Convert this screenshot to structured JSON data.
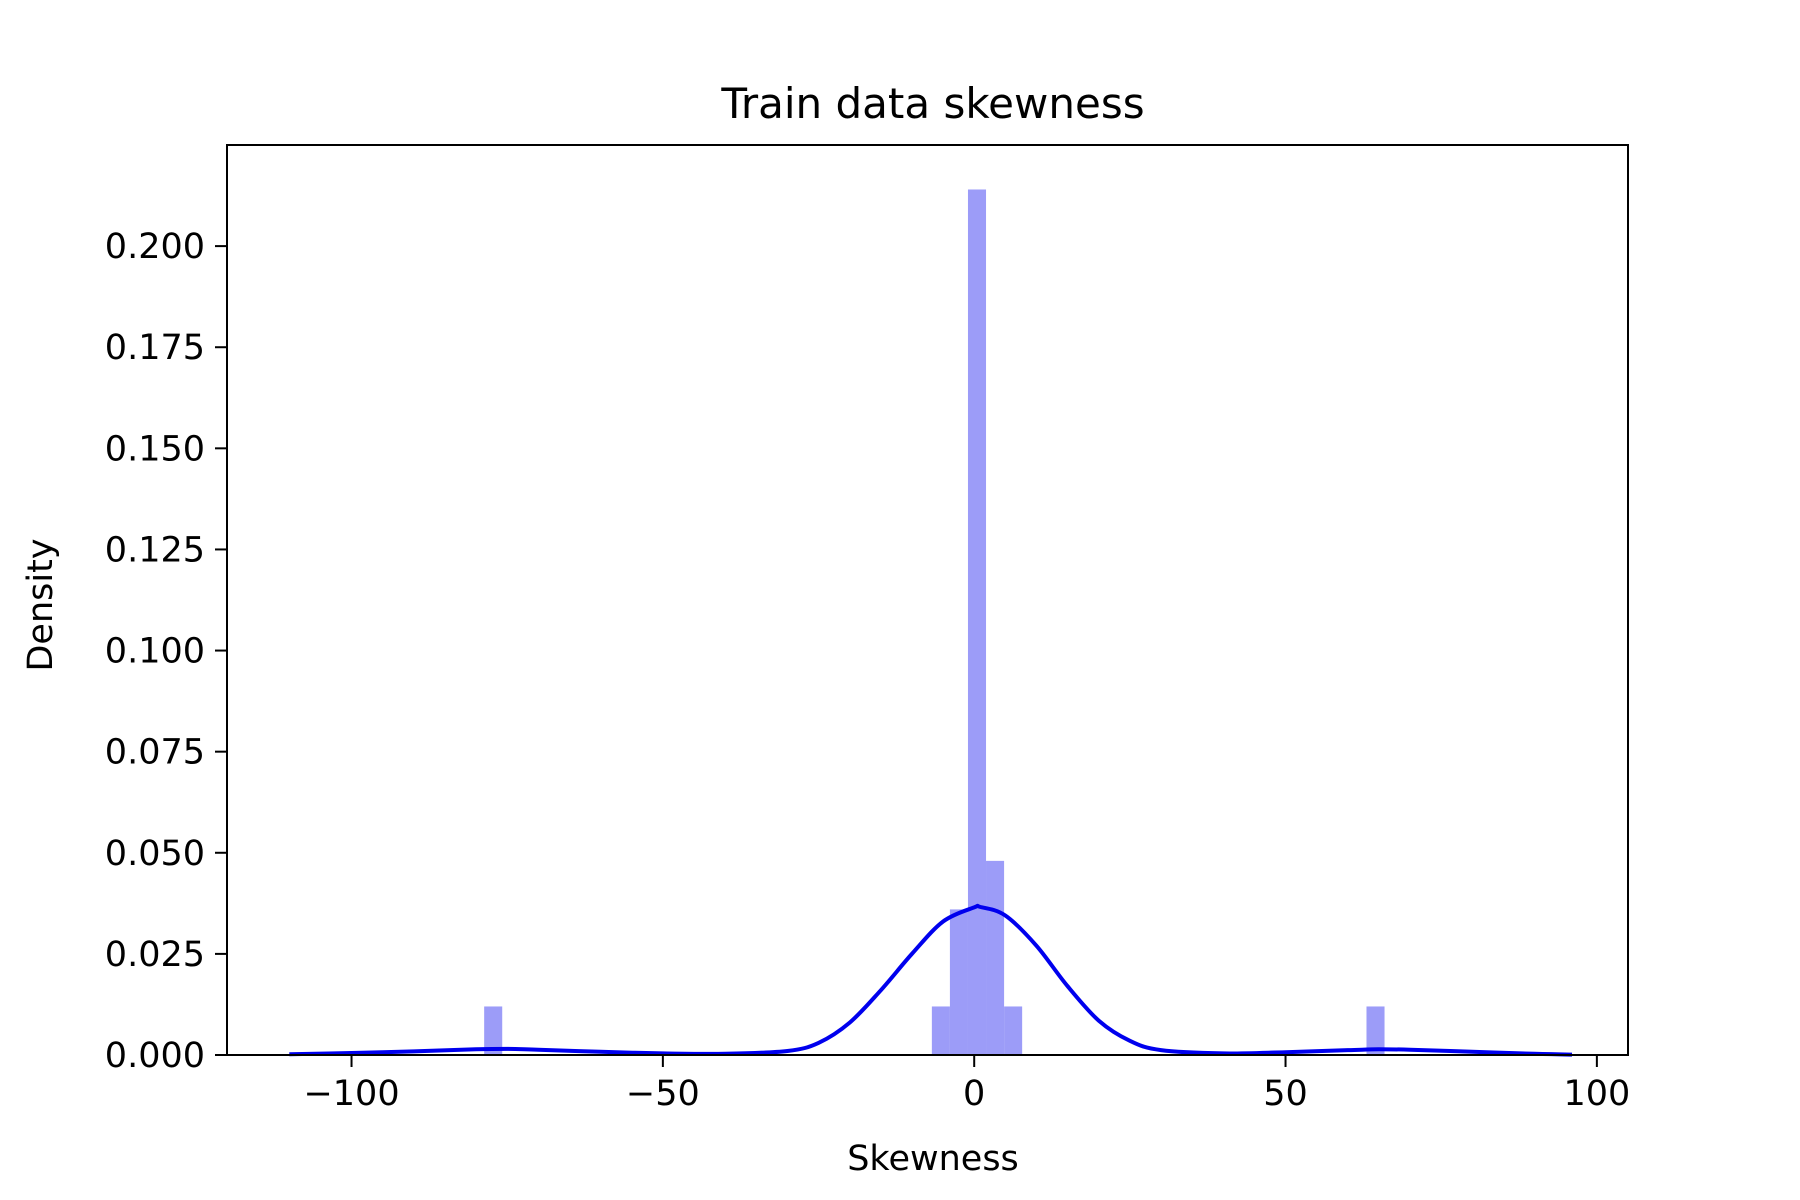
{
  "chart_data": {
    "type": "bar",
    "title": "Train data skewness",
    "xlabel": "Skewness",
    "ylabel": "Density",
    "xlim": [
      -120,
      105
    ],
    "ylim": [
      0,
      0.225
    ],
    "grid": false,
    "x_ticks": [
      -100,
      -50,
      0,
      50,
      100
    ],
    "x_tick_labels": [
      "−100",
      "−50",
      "0",
      "50",
      "100"
    ],
    "y_ticks": [
      0.0,
      0.025,
      0.05,
      0.075,
      0.1,
      0.125,
      0.15,
      0.175,
      0.2
    ],
    "y_tick_labels": [
      "0.000",
      "0.025",
      "0.050",
      "0.075",
      "0.100",
      "0.125",
      "0.150",
      "0.175",
      "0.200"
    ],
    "histogram": {
      "color": "#9c9cf8",
      "bins": [
        {
          "x0": -78.7,
          "x1": -75.8,
          "density": 0.012
        },
        {
          "x0": -6.8,
          "x1": -3.9,
          "density": 0.012
        },
        {
          "x0": -3.9,
          "x1": -1.0,
          "density": 0.036
        },
        {
          "x0": -1.0,
          "x1": 1.9,
          "density": 0.214
        },
        {
          "x0": 1.9,
          "x1": 4.8,
          "density": 0.048
        },
        {
          "x0": 4.8,
          "x1": 7.7,
          "density": 0.012
        },
        {
          "x0": 63.0,
          "x1": 65.9,
          "density": 0.012
        }
      ]
    },
    "kde": {
      "color": "#0000ee",
      "x": [
        -110,
        -100,
        -90,
        -80,
        -75,
        -70,
        -60,
        -50,
        -40,
        -30,
        -25,
        -20,
        -15,
        -10,
        -5,
        0,
        1,
        5,
        10,
        15,
        20,
        25,
        30,
        40,
        50,
        60,
        65,
        70,
        80,
        90,
        96
      ],
      "y": [
        0.0002,
        0.0005,
        0.0009,
        0.0014,
        0.0015,
        0.0013,
        0.0008,
        0.0004,
        0.0003,
        0.001,
        0.003,
        0.008,
        0.016,
        0.025,
        0.033,
        0.0365,
        0.0366,
        0.0345,
        0.027,
        0.017,
        0.0085,
        0.0035,
        0.0012,
        0.0004,
        0.0007,
        0.0012,
        0.0014,
        0.0013,
        0.0008,
        0.0003,
        0.0001
      ]
    }
  }
}
